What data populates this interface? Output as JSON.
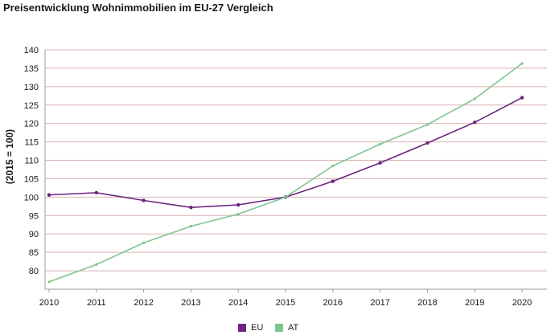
{
  "chart_data": {
    "type": "line",
    "title": "Preisentwicklung Wohnimmobilien im EU-27 Vergleich",
    "ylabel": "(2015 = 100)",
    "xlabel": "",
    "x": [
      2010,
      2011,
      2012,
      2013,
      2014,
      2015,
      2016,
      2017,
      2018,
      2019,
      2020
    ],
    "ylim": [
      75,
      140
    ],
    "yticks": [
      80,
      85,
      90,
      95,
      100,
      105,
      110,
      115,
      120,
      125,
      130,
      135,
      140
    ],
    "grid": true,
    "legend_position": "bottom-center",
    "series": [
      {
        "name": "EU",
        "color": "#6a237e",
        "values": [
          100.6,
          101.2,
          99.1,
          97.2,
          97.9,
          100.0,
          104.3,
          109.3,
          114.7,
          120.3,
          127.0
        ]
      },
      {
        "name": "AT",
        "color": "#7fc58f",
        "values": [
          77.0,
          81.7,
          87.6,
          92.1,
          95.4,
          100.0,
          108.5,
          114.4,
          119.7,
          126.7,
          136.3
        ]
      }
    ]
  },
  "colors": {
    "grid": "#d9b1b1",
    "axis": "#999999"
  }
}
